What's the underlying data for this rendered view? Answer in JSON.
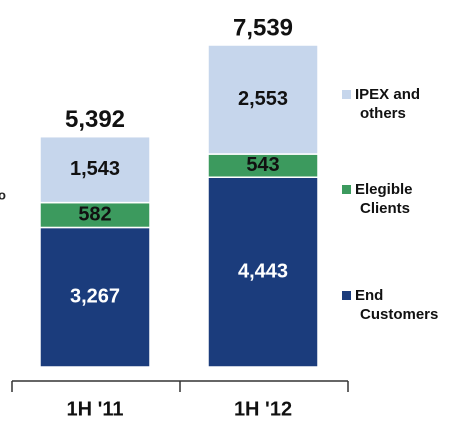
{
  "chart_data": {
    "type": "stacked_bar",
    "categories": [
      "1H '11",
      "1H '12"
    ],
    "series": [
      {
        "name": "End Customers",
        "color": "#1b3c7c",
        "values": [
          3267,
          4443
        ],
        "value_labels": [
          "3,267",
          "4,443"
        ]
      },
      {
        "name": "Elegible Clients",
        "color": "#3c9a5e",
        "values": [
          582,
          543
        ]
      },
      {
        "name": "IPEX and others",
        "color": "#c6d6ec",
        "values": [
          1543,
          2553
        ],
        "value_labels": [
          "1,543",
          "2,553"
        ]
      }
    ],
    "totals": [
      5392,
      7539
    ],
    "total_labels": [
      "5,392",
      "7,539"
    ],
    "annotation": "o"
  }
}
